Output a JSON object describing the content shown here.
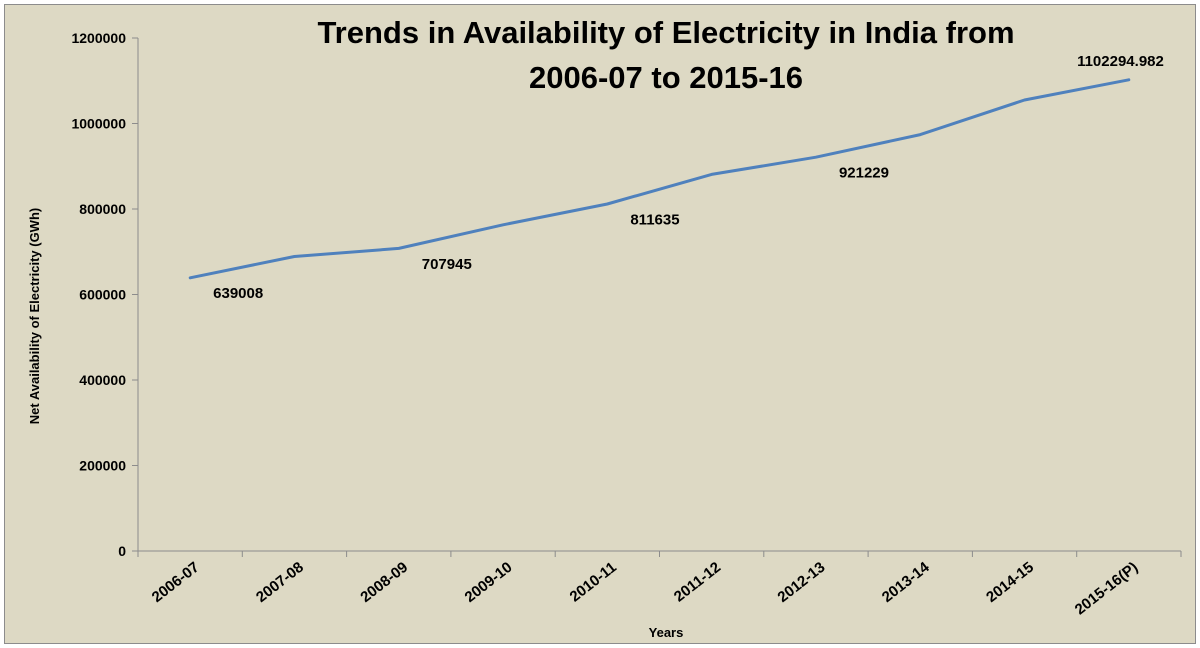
{
  "chart_data": {
    "type": "line",
    "title_lines": [
      "Trends in Availability of Electricity in India from",
      "2006-07 to 2015-16"
    ],
    "xlabel": "Years",
    "ylabel": "Net Availability of Electricity (GWh)",
    "categories": [
      "2006-07",
      "2007-08",
      "2008-09",
      "2009-10",
      "2010-11",
      "2011-12",
      "2012-13",
      "2013-14",
      "2014-15",
      "2015-16(P)"
    ],
    "series": [
      {
        "values": [
          639008,
          689000,
          707945,
          763000,
          811635,
          881000,
          921229,
          974000,
          1055000,
          1102294.982
        ],
        "color": "#4f81bd"
      }
    ],
    "data_labels": [
      {
        "index": 0,
        "text": "639008"
      },
      {
        "index": 2,
        "text": "707945"
      },
      {
        "index": 4,
        "text": "811635"
      },
      {
        "index": 6,
        "text": "921229"
      },
      {
        "index": 9,
        "text": "1102294.982"
      }
    ],
    "ylim": [
      0,
      1200000
    ],
    "yticks": [
      0,
      200000,
      400000,
      600000,
      800000,
      1000000,
      1200000
    ],
    "ytick_labels": [
      "0",
      "200000",
      "400000",
      "600000",
      "800000",
      "1000000",
      "1200000"
    ],
    "grid": false,
    "legend": "none",
    "background_color": "#ddd9c4",
    "axis_color": "#8c8c8c"
  }
}
